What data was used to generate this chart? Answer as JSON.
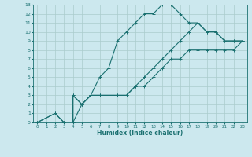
{
  "xlabel": "Humidex (Indice chaleur)",
  "bg_color": "#cce8ee",
  "grid_color": "#aacccc",
  "line_color": "#1a7070",
  "xlim": [
    -0.5,
    23.5
  ],
  "ylim": [
    0,
    13
  ],
  "xticks": [
    0,
    1,
    2,
    3,
    4,
    5,
    6,
    7,
    8,
    9,
    10,
    11,
    12,
    13,
    14,
    15,
    16,
    17,
    18,
    19,
    20,
    21,
    22,
    23
  ],
  "yticks": [
    0,
    1,
    2,
    3,
    4,
    5,
    6,
    7,
    8,
    9,
    10,
    11,
    12,
    13
  ],
  "curve1_x": [
    0,
    2,
    3,
    4,
    4,
    5,
    6,
    7,
    8,
    9,
    10,
    11,
    12,
    13,
    14,
    15,
    16,
    17,
    18,
    19,
    20,
    21,
    22,
    23
  ],
  "curve1_y": [
    0,
    1,
    0,
    0,
    3,
    2,
    3,
    5,
    6,
    9,
    10,
    11,
    12,
    12,
    13,
    13,
    12,
    11,
    11,
    10,
    10,
    9,
    9,
    9
  ],
  "curve2_x": [
    0,
    3,
    4,
    4,
    5,
    6,
    7,
    8,
    9,
    10,
    11,
    12,
    13,
    14,
    15,
    16,
    17,
    18,
    19,
    20,
    21,
    22,
    23
  ],
  "curve2_y": [
    0,
    0,
    0,
    3,
    2,
    3,
    3,
    3,
    3,
    3,
    4,
    5,
    6,
    7,
    8,
    9,
    10,
    11,
    10,
    10,
    9,
    9,
    9
  ],
  "curve3_x": [
    0,
    2,
    3,
    4,
    5,
    6,
    7,
    8,
    9,
    10,
    11,
    12,
    13,
    14,
    15,
    16,
    17,
    18,
    19,
    20,
    21,
    22,
    23
  ],
  "curve3_y": [
    0,
    1,
    0,
    0,
    2,
    3,
    3,
    3,
    3,
    3,
    4,
    4,
    5,
    6,
    7,
    7,
    8,
    8,
    8,
    8,
    8,
    8,
    9
  ]
}
